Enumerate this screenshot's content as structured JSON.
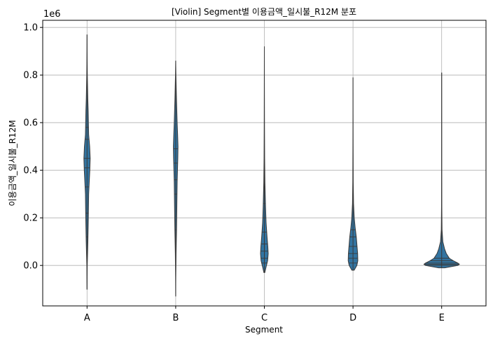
{
  "chart_data": {
    "type": "violin",
    "title": "[Violin] Segment별 이용금액_일시불_R12M 분포",
    "xlabel": "Segment",
    "ylabel": "이용금액_일시불_R12M",
    "y_offset_label": "1e6",
    "categories": [
      "A",
      "B",
      "C",
      "D",
      "E"
    ],
    "ylim": [
      -0.17,
      1.03
    ],
    "y_ticks": [
      0.0,
      0.2,
      0.4,
      0.6,
      0.8,
      1.0
    ],
    "y_tick_labels": [
      "0.0",
      "0.2",
      "0.4",
      "0.6",
      "0.8",
      "1.0"
    ],
    "grid": true,
    "inner": "stick",
    "violin_color": "#3274a1",
    "edge_color": "#3a3a3a",
    "violins": [
      {
        "category": "A",
        "min": -0.1,
        "max": 0.97,
        "density": [
          [
            -0.1,
            0.01
          ],
          [
            0.0,
            0.06
          ],
          [
            0.1,
            0.22
          ],
          [
            0.2,
            0.34
          ],
          [
            0.3,
            0.42
          ],
          [
            0.4,
            0.72
          ],
          [
            0.45,
            0.82
          ],
          [
            0.5,
            0.68
          ],
          [
            0.55,
            0.42
          ],
          [
            0.6,
            0.36
          ],
          [
            0.65,
            0.3
          ],
          [
            0.7,
            0.2
          ],
          [
            0.8,
            0.08
          ],
          [
            0.9,
            0.02
          ],
          [
            0.97,
            0.0
          ]
        ],
        "sticks": [
          0.12,
          0.22,
          0.33,
          0.41,
          0.45,
          0.53,
          0.58
        ]
      },
      {
        "category": "B",
        "min": -0.13,
        "max": 0.86,
        "density": [
          [
            -0.13,
            0.0
          ],
          [
            -0.05,
            0.03
          ],
          [
            0.05,
            0.1
          ],
          [
            0.15,
            0.22
          ],
          [
            0.25,
            0.3
          ],
          [
            0.35,
            0.38
          ],
          [
            0.45,
            0.55
          ],
          [
            0.5,
            0.6
          ],
          [
            0.55,
            0.5
          ],
          [
            0.6,
            0.38
          ],
          [
            0.7,
            0.2
          ],
          [
            0.8,
            0.06
          ],
          [
            0.86,
            0.0
          ]
        ],
        "sticks": [
          0.15,
          0.3,
          0.36,
          0.43,
          0.49
        ]
      },
      {
        "category": "C",
        "min": -0.03,
        "max": 0.92,
        "density": [
          [
            -0.03,
            0.12
          ],
          [
            -0.01,
            0.4
          ],
          [
            0.02,
            0.85
          ],
          [
            0.05,
            1.0
          ],
          [
            0.08,
            0.9
          ],
          [
            0.12,
            0.7
          ],
          [
            0.18,
            0.45
          ],
          [
            0.25,
            0.3
          ],
          [
            0.35,
            0.15
          ],
          [
            0.45,
            0.08
          ],
          [
            0.6,
            0.04
          ],
          [
            0.75,
            0.02
          ],
          [
            0.92,
            0.0
          ]
        ],
        "sticks": [
          0.01,
          0.03,
          0.06,
          0.09,
          0.14,
          0.2,
          0.26
        ]
      },
      {
        "category": "D",
        "min": -0.02,
        "max": 0.79,
        "density": [
          [
            -0.02,
            0.3
          ],
          [
            0.0,
            1.0
          ],
          [
            0.02,
            1.25
          ],
          [
            0.05,
            1.2
          ],
          [
            0.08,
            1.05
          ],
          [
            0.12,
            0.85
          ],
          [
            0.16,
            0.55
          ],
          [
            0.2,
            0.32
          ],
          [
            0.26,
            0.14
          ],
          [
            0.35,
            0.06
          ],
          [
            0.5,
            0.03
          ],
          [
            0.65,
            0.01
          ],
          [
            0.79,
            0.0
          ]
        ],
        "sticks": [
          0.01,
          0.03,
          0.05,
          0.08,
          0.12,
          0.15
        ]
      },
      {
        "category": "E",
        "min": -0.01,
        "max": 0.81,
        "density": [
          [
            -0.01,
            0.8
          ],
          [
            0.0,
            4.2
          ],
          [
            0.005,
            4.6
          ],
          [
            0.01,
            4.2
          ],
          [
            0.02,
            3.0
          ],
          [
            0.03,
            2.0
          ],
          [
            0.05,
            1.2
          ],
          [
            0.07,
            0.75
          ],
          [
            0.1,
            0.3
          ],
          [
            0.15,
            0.1
          ],
          [
            0.25,
            0.04
          ],
          [
            0.4,
            0.02
          ],
          [
            0.6,
            0.01
          ],
          [
            0.81,
            0.0
          ]
        ],
        "sticks": [
          0.0,
          0.005,
          0.01,
          0.02,
          0.03
        ]
      }
    ]
  }
}
